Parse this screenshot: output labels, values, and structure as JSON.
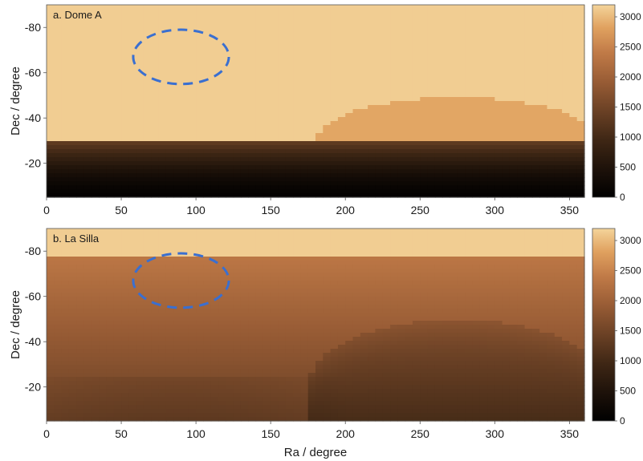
{
  "chart_data": [
    {
      "type": "heatmap",
      "panel_label": "a. Dome A",
      "xlabel": "",
      "ylabel": "Dec / degree",
      "xlim": [
        0,
        360
      ],
      "ylim": [
        -5,
        -90
      ],
      "x_ticks": [
        0,
        50,
        100,
        150,
        200,
        250,
        300,
        350
      ],
      "y_ticks": [
        -80,
        -60,
        -40,
        -20
      ],
      "colorbar": {
        "min": 0,
        "max": 3200,
        "ticks": [
          0,
          500,
          1000,
          1500,
          2000,
          2500,
          3000
        ]
      },
      "base_value": 3150,
      "horizon_dec": -29,
      "bump": {
        "center_ra": 275,
        "halfwidth_ra": 95,
        "peak_dec": -49
      },
      "ellipse": {
        "center_ra": 90,
        "center_dec": -67,
        "ra_radius": 32,
        "dec_radius": 12,
        "color": "#3a6fd0"
      }
    },
    {
      "type": "heatmap",
      "panel_label": "b. La Silla",
      "xlabel": "Ra / degree",
      "ylabel": "Dec / degree",
      "xlim": [
        0,
        360
      ],
      "ylim": [
        -5,
        -90
      ],
      "x_ticks": [
        0,
        50,
        100,
        150,
        200,
        250,
        300,
        350
      ],
      "y_ticks": [
        -80,
        -60,
        -40,
        -20
      ],
      "colorbar": {
        "min": 0,
        "max": 3200,
        "ticks": [
          0,
          500,
          1000,
          1500,
          2000,
          2500,
          3000
        ]
      },
      "base_value": 3150,
      "horizon_dec": -78,
      "bump": {
        "center_ra": 275,
        "halfwidth_ra": 100,
        "peak_dec": -50
      },
      "ellipse": {
        "center_ra": 90,
        "center_dec": -67,
        "ra_radius": 32,
        "dec_radius": 12,
        "color": "#3a6fd0"
      }
    }
  ]
}
